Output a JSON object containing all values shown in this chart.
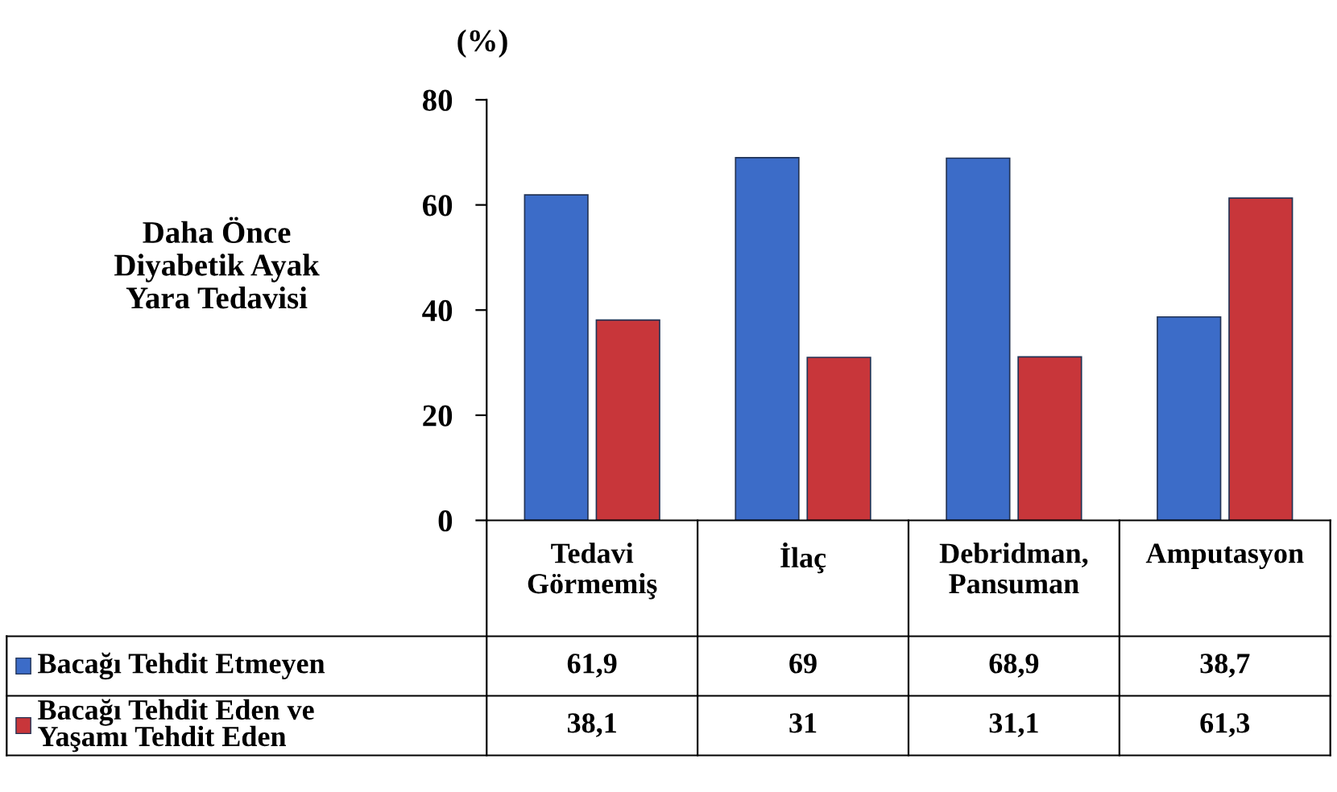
{
  "chart_data": {
    "type": "bar",
    "ylabel": "Daha Önce\nDiyabetik Ayak\nYara Tedavisi",
    "annotations": [
      "(%)"
    ],
    "categories": [
      "Tedavi\nGörmemiş",
      "İlaç",
      "Debridman,\nPansuman",
      "Amputasyon"
    ],
    "series": [
      {
        "name": "Bacağı Tehdit Etmeyen",
        "color": "#3c6cc8",
        "values": [
          61.9,
          69,
          68.9,
          38.7
        ],
        "value_labels": [
          "61,9",
          "69",
          "68,9",
          "38,7"
        ]
      },
      {
        "name": "Bacağı Tehdit Eden ve\nYaşamı Tehdit Eden",
        "color": "#c8363a",
        "values": [
          38.1,
          31,
          31.1,
          61.3
        ],
        "value_labels": [
          "38,1",
          "31",
          "31,1",
          "61,3"
        ]
      }
    ],
    "ylim": [
      0,
      80
    ],
    "yticks": [
      0,
      20,
      40,
      60,
      80
    ],
    "grid": false,
    "legend": "bottom"
  }
}
